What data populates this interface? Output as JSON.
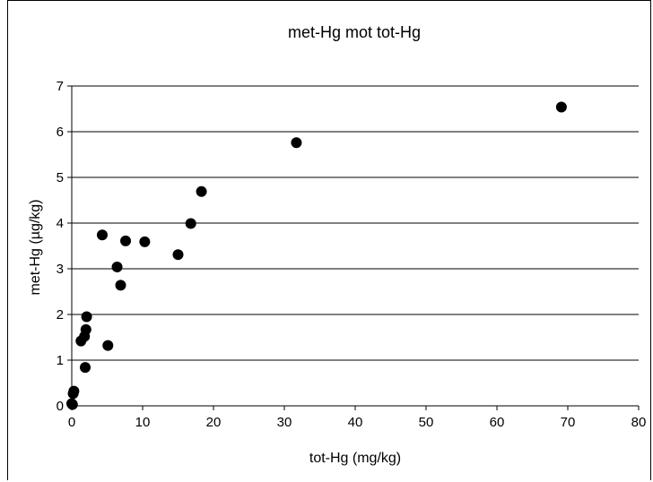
{
  "chart_data": {
    "type": "scatter",
    "title": "met-Hg mot tot-Hg",
    "xlabel": "tot-Hg (mg/kg)",
    "ylabel": "met-Hg (µg/kg)",
    "xlim": [
      0,
      80
    ],
    "ylim": [
      0,
      7
    ],
    "xticks": [
      "0",
      "10",
      "20",
      "30",
      "40",
      "50",
      "60",
      "70",
      "80"
    ],
    "yticks": [
      "0",
      "1",
      "2",
      "3",
      "4",
      "5",
      "6",
      "7"
    ],
    "grid": "horizontal",
    "legend": "none",
    "marker_color": "#000000",
    "points": [
      {
        "x": 0.0,
        "y": 0.05
      },
      {
        "x": 0.1,
        "y": 0.03
      },
      {
        "x": 0.2,
        "y": 0.27
      },
      {
        "x": 0.3,
        "y": 0.32
      },
      {
        "x": 1.3,
        "y": 1.42
      },
      {
        "x": 1.8,
        "y": 1.52
      },
      {
        "x": 1.9,
        "y": 0.84
      },
      {
        "x": 2.0,
        "y": 1.67
      },
      {
        "x": 2.1,
        "y": 1.95
      },
      {
        "x": 4.3,
        "y": 3.74
      },
      {
        "x": 5.1,
        "y": 1.32
      },
      {
        "x": 6.4,
        "y": 3.04
      },
      {
        "x": 6.9,
        "y": 2.64
      },
      {
        "x": 7.6,
        "y": 3.61
      },
      {
        "x": 10.3,
        "y": 3.59
      },
      {
        "x": 15.0,
        "y": 3.31
      },
      {
        "x": 16.8,
        "y": 3.99
      },
      {
        "x": 18.3,
        "y": 4.69
      },
      {
        "x": 31.7,
        "y": 5.76
      },
      {
        "x": 69.1,
        "y": 6.54
      }
    ]
  }
}
